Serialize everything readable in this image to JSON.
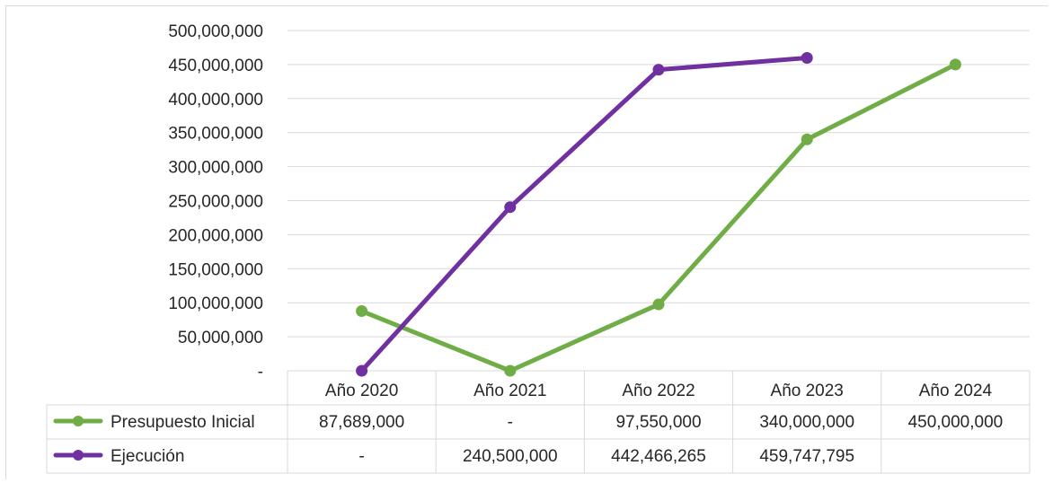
{
  "chart_data": {
    "type": "line",
    "categories": [
      "Año 2020",
      "Año 2021",
      "Año 2022",
      "Año 2023",
      "Año 2024"
    ],
    "ylim": [
      0,
      500000000
    ],
    "ytick_step": 50000000,
    "ytick_labels": [
      "-",
      "50,000,000",
      "100,000,000",
      "150,000,000",
      "200,000,000",
      "250,000,000",
      "300,000,000",
      "350,000,000",
      "400,000,000",
      "450,000,000",
      "500,000,000"
    ],
    "grid": true,
    "legend": "data-table-left",
    "series": [
      {
        "name": "Presupuesto Inicial",
        "color": "#70ad47",
        "values": [
          87689000,
          0,
          97550000,
          340000000,
          450000000
        ],
        "table_labels": [
          "87,689,000",
          "-",
          "97,550,000",
          "340,000,000",
          "450,000,000"
        ]
      },
      {
        "name": "Ejecución",
        "color": "#7030a0",
        "values": [
          0,
          240500000,
          442466265,
          459747795,
          null
        ],
        "table_labels": [
          "-",
          "240,500,000",
          "442,466,265",
          "459,747,795",
          ""
        ]
      }
    ]
  }
}
